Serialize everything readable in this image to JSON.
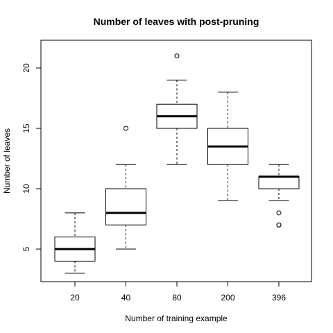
{
  "chart_data": {
    "type": "box",
    "title": "Number of leaves with post-pruning",
    "xlabel": "Number of training example",
    "ylabel": "Number of leaves",
    "categories": [
      "20",
      "40",
      "80",
      "200",
      "396"
    ],
    "ylim": [
      2.3,
      22.3
    ],
    "yticks": [
      5,
      10,
      15,
      20
    ],
    "grid": false,
    "boxes": [
      {
        "category": "20",
        "whisker_low": 3,
        "q1": 4,
        "median": 5,
        "q3": 6,
        "whisker_high": 8,
        "outliers": []
      },
      {
        "category": "40",
        "whisker_low": 5,
        "q1": 7,
        "median": 8,
        "q3": 10,
        "whisker_high": 12,
        "outliers": [
          15
        ]
      },
      {
        "category": "80",
        "whisker_low": 12,
        "q1": 15,
        "median": 16,
        "q3": 17,
        "whisker_high": 19,
        "outliers": [
          21
        ]
      },
      {
        "category": "200",
        "whisker_low": 9,
        "q1": 12,
        "median": 13.5,
        "q3": 15,
        "whisker_high": 18,
        "outliers": []
      },
      {
        "category": "396",
        "whisker_low": 9,
        "q1": 10,
        "median": 11,
        "q3": 11,
        "whisker_high": 12,
        "outliers": [
          8,
          7,
          7
        ]
      }
    ]
  }
}
